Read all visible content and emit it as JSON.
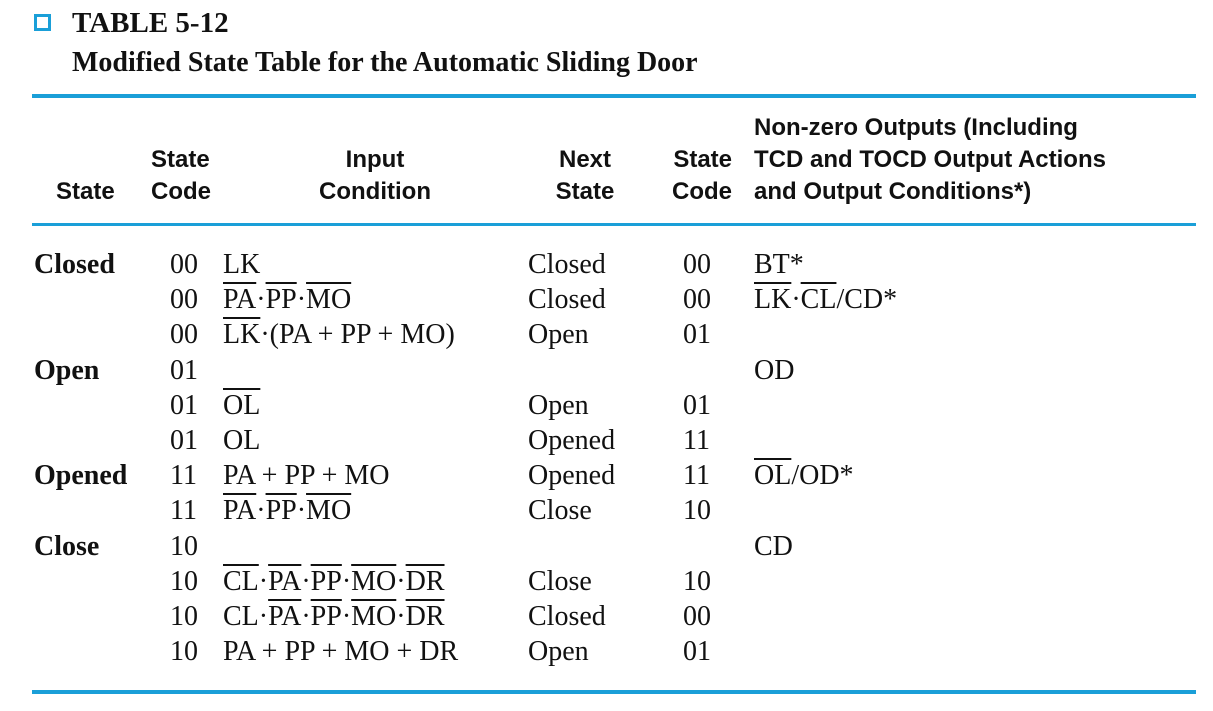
{
  "caption": {
    "number": "TABLE 5-12",
    "title": "Modified State Table for the Automatic Sliding Door"
  },
  "colors": {
    "accent": "#1a9fd8",
    "text": "#111111"
  },
  "headers": {
    "state": "State",
    "state_code_1": "State",
    "state_code_2": "Code",
    "input_1": "Input",
    "input_2": "Condition",
    "next_1": "Next",
    "next_2": "State",
    "next_code_1": "State",
    "next_code_2": "Code",
    "outputs_1": "Non-zero Outputs (Including",
    "outputs_2": "TCD and TOCD Output Actions",
    "outputs_3": "and Output Conditions*)"
  },
  "rows": [
    {
      "state": "Closed",
      "code": "00",
      "input": [
        {
          "t": "LK",
          "o": false
        }
      ],
      "next": "Closed",
      "next_code": "00",
      "output": [
        {
          "t": "BT*",
          "o": false
        }
      ]
    },
    {
      "state": "",
      "code": "00",
      "input": [
        {
          "t": "PA",
          "o": true
        },
        {
          "t": "·",
          "o": false
        },
        {
          "t": "PP",
          "o": true
        },
        {
          "t": "·",
          "o": false
        },
        {
          "t": "MO",
          "o": true
        }
      ],
      "next": "Closed",
      "next_code": "00",
      "output": [
        {
          "t": "LK",
          "o": true
        },
        {
          "t": "·",
          "o": false
        },
        {
          "t": "CL",
          "o": true
        },
        {
          "t": "/CD*",
          "o": false
        }
      ]
    },
    {
      "state": "",
      "code": "00",
      "input": [
        {
          "t": "LK",
          "o": true
        },
        {
          "t": "·(PA + PP + MO)",
          "o": false
        }
      ],
      "next": "Open",
      "next_code": "01",
      "output": []
    },
    {
      "state": "Open",
      "code": "01",
      "input": [],
      "next": "",
      "next_code": "",
      "output": [
        {
          "t": "OD",
          "o": false
        }
      ]
    },
    {
      "state": "",
      "code": "01",
      "input": [
        {
          "t": "OL",
          "o": true
        }
      ],
      "next": "Open",
      "next_code": "01",
      "output": []
    },
    {
      "state": "",
      "code": "01",
      "input": [
        {
          "t": "OL",
          "o": false
        }
      ],
      "next": "Opened",
      "next_code": "11",
      "output": []
    },
    {
      "state": "Opened",
      "code": "11",
      "input": [
        {
          "t": "PA + PP + MO",
          "o": false
        }
      ],
      "next": "Opened",
      "next_code": "11",
      "output": [
        {
          "t": "OL",
          "o": true
        },
        {
          "t": "/OD*",
          "o": false
        }
      ]
    },
    {
      "state": "",
      "code": "11",
      "input": [
        {
          "t": "PA",
          "o": true
        },
        {
          "t": "·",
          "o": false
        },
        {
          "t": "PP",
          "o": true
        },
        {
          "t": "·",
          "o": false
        },
        {
          "t": "MO",
          "o": true
        }
      ],
      "next": "Close",
      "next_code": "10",
      "output": []
    },
    {
      "state": "Close",
      "code": "10",
      "input": [],
      "next": "",
      "next_code": "",
      "output": [
        {
          "t": "CD",
          "o": false
        }
      ]
    },
    {
      "state": "",
      "code": "10",
      "input": [
        {
          "t": "CL",
          "o": true
        },
        {
          "t": "·",
          "o": false
        },
        {
          "t": "PA",
          "o": true
        },
        {
          "t": "·",
          "o": false
        },
        {
          "t": "PP",
          "o": true
        },
        {
          "t": "·",
          "o": false
        },
        {
          "t": "MO",
          "o": true
        },
        {
          "t": "·",
          "o": false
        },
        {
          "t": "DR",
          "o": true
        }
      ],
      "next": "Close",
      "next_code": "10",
      "output": []
    },
    {
      "state": "",
      "code": "10",
      "input": [
        {
          "t": "CL·",
          "o": false
        },
        {
          "t": "PA",
          "o": true
        },
        {
          "t": "·",
          "o": false
        },
        {
          "t": "PP",
          "o": true
        },
        {
          "t": "·",
          "o": false
        },
        {
          "t": "MO",
          "o": true
        },
        {
          "t": "·",
          "o": false
        },
        {
          "t": "DR",
          "o": true
        }
      ],
      "next": "Closed",
      "next_code": "00",
      "output": []
    },
    {
      "state": "",
      "code": "10",
      "input": [
        {
          "t": "PA + PP + MO + DR",
          "o": false
        }
      ],
      "next": "Open",
      "next_code": "01",
      "output": []
    }
  ]
}
